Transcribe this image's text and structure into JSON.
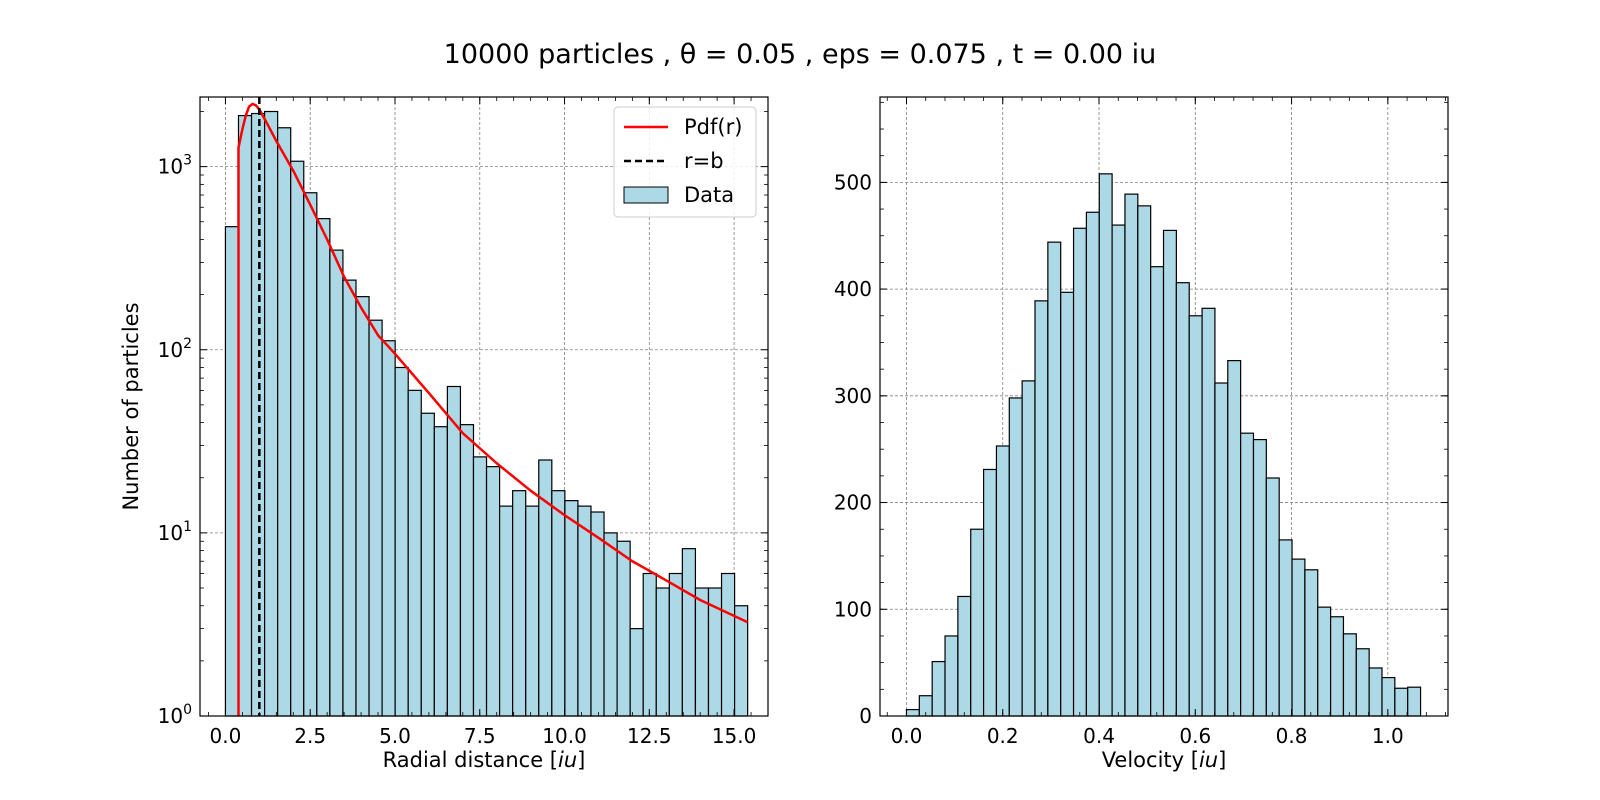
{
  "title": "10000 particles , θ = 0.05 , eps = 0.075 , t = 0.00 iu",
  "chart_data": [
    {
      "type": "bar",
      "subtype": "histogram",
      "name": "radial-distribution",
      "xlabel": "Radial distance [iu]",
      "ylabel": "Number of particles",
      "yscale": "log",
      "xlim": [
        -0.75,
        16.0
      ],
      "ylim": [
        1,
        2400
      ],
      "xticks": [
        "0.0",
        "2.5",
        "5.0",
        "7.5",
        "10.0",
        "12.5",
        "15.0"
      ],
      "yticks": [
        "10^0",
        "10^1",
        "10^2",
        "10^3"
      ],
      "grid": true,
      "legend_position": "top-right",
      "legend": [
        {
          "label": "Pdf(r)",
          "style": "red-line"
        },
        {
          "label": "r=b",
          "style": "black-dashed"
        },
        {
          "label": "Data",
          "style": "lightblue-bar"
        }
      ],
      "bin_edges": [
        0.0,
        0.385,
        0.77,
        1.155,
        1.54,
        1.925,
        2.31,
        2.695,
        3.08,
        3.465,
        3.85,
        4.235,
        4.62,
        5.005,
        5.39,
        5.775,
        6.16,
        6.545,
        6.93,
        7.315,
        7.7,
        8.085,
        8.47,
        8.855,
        9.24,
        9.625,
        10.01,
        10.395,
        10.78,
        11.165,
        11.55,
        11.935,
        12.32,
        12.705,
        13.09,
        13.475,
        13.86,
        14.245,
        14.63,
        15.015,
        15.4
      ],
      "values": [
        470,
        1900,
        1950,
        2000,
        1630,
        1070,
        720,
        520,
        350,
        240,
        195,
        145,
        112,
        80,
        60,
        45,
        38,
        63,
        39,
        26,
        23,
        14,
        17,
        14,
        25,
        17,
        15,
        14,
        13,
        10,
        9,
        3,
        6,
        5,
        6,
        8.2,
        5,
        5,
        6,
        4
      ],
      "bar_color": "#add8e6",
      "edge_color": "#000000",
      "series": [
        {
          "name": "Pdf(r)",
          "color": "#ff0000",
          "x": [
            0.385,
            0.385,
            0.5,
            0.6,
            0.7,
            0.8,
            0.9,
            1.0,
            1.2,
            1.5,
            2.0,
            2.5,
            3.0,
            3.5,
            4.0,
            4.5,
            5.0,
            6.0,
            7.0,
            8.0,
            9.0,
            10.0,
            11.0,
            12.0,
            13.0,
            14.0,
            15.4
          ],
          "y": [
            1,
            1270,
            1600,
            1900,
            2130,
            2200,
            2160,
            2050,
            1760,
            1380,
            950,
            620,
            400,
            250,
            170,
            120,
            95,
            58,
            35,
            24,
            17,
            12.5,
            9.4,
            7,
            5.5,
            4.3,
            3.25
          ]
        }
      ],
      "vline": {
        "name": "r=b",
        "x": 1.0,
        "color": "#000000",
        "style": "dashed"
      }
    },
    {
      "type": "bar",
      "subtype": "histogram",
      "name": "velocity-distribution",
      "xlabel": "Velocity [iu]",
      "ylabel": "",
      "yscale": "linear",
      "xlim": [
        -0.055,
        1.125
      ],
      "ylim": [
        0,
        580
      ],
      "xticks": [
        "0.0",
        "0.2",
        "0.4",
        "0.6",
        "0.8",
        "1.0"
      ],
      "yticks": [
        "0",
        "100",
        "200",
        "300",
        "400",
        "500"
      ],
      "grid": true,
      "bin_edges": [
        0.0,
        0.0267,
        0.0534,
        0.0801,
        0.1068,
        0.1335,
        0.1602,
        0.1869,
        0.2136,
        0.2403,
        0.267,
        0.2937,
        0.3204,
        0.3471,
        0.3738,
        0.4005,
        0.4272,
        0.4539,
        0.4806,
        0.5073,
        0.534,
        0.5607,
        0.5874,
        0.6141,
        0.6408,
        0.6675,
        0.6942,
        0.7209,
        0.7476,
        0.7743,
        0.801,
        0.8277,
        0.8544,
        0.8811,
        0.9078,
        0.9345,
        0.9612,
        0.9879,
        1.0146,
        1.0413,
        1.068
      ],
      "values": [
        6,
        19,
        51,
        75,
        112,
        175,
        231,
        253,
        298,
        314,
        389,
        444,
        397,
        457,
        472,
        508,
        460,
        489,
        478,
        421,
        455,
        406,
        375,
        382,
        312,
        333,
        265,
        259,
        223,
        165,
        147,
        137,
        102,
        93,
        77,
        63,
        45,
        36,
        26,
        27
      ],
      "bar_color": "#add8e6",
      "edge_color": "#000000"
    }
  ]
}
